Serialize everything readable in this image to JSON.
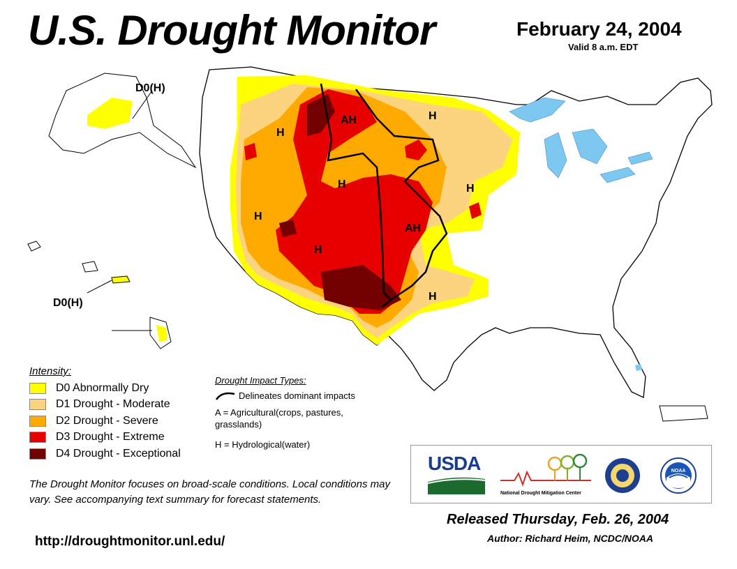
{
  "header": {
    "title": "U.S. Drought Monitor",
    "date": "February 24, 2004",
    "valid": "Valid 8 a.m. EDT"
  },
  "map_labels": {
    "alaska": "D0(H)",
    "hawaii": "D0(H)",
    "regions": [
      "AH",
      "H",
      "H",
      "H",
      "H",
      "H",
      "AH",
      "H"
    ]
  },
  "legend": {
    "heading": "Intensity:",
    "items": [
      {
        "code": "D0",
        "label": "D0 Abnormally Dry",
        "color": "#ffff00"
      },
      {
        "code": "D1",
        "label": "D1 Drought - Moderate",
        "color": "#fcd37f"
      },
      {
        "code": "D2",
        "label": "D2 Drought - Severe",
        "color": "#ffaa00"
      },
      {
        "code": "D3",
        "label": "D3 Drought - Extreme",
        "color": "#e60000"
      },
      {
        "code": "D4",
        "label": "D4 Drought - Exceptional",
        "color": "#730000"
      }
    ]
  },
  "impact": {
    "heading": "Drought Impact Types:",
    "delineates": "Delineates dominant impacts",
    "agricultural": "A = Agricultural(crops, pastures, grasslands)",
    "hydrological": "H = Hydrological(water)"
  },
  "note": "The Drought Monitor focuses on broad-scale conditions. Local conditions may vary. See accompanying text summary for forecast statements.",
  "url": "http://droughtmonitor.unl.edu/",
  "released": "Released Thursday, Feb. 26, 2004",
  "author": "Author: Richard Heim, NCDC/NOAA",
  "logos": {
    "usda": "USDA",
    "ndmc": "National Drought Mitigation Center",
    "noaa": "NOAA"
  }
}
